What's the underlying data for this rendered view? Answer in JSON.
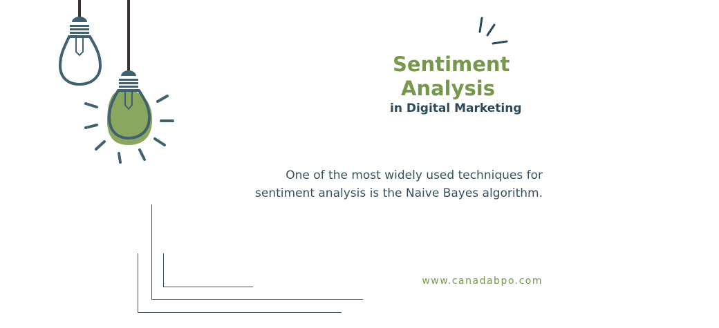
{
  "title": {
    "line1": "Sentiment",
    "line2": "Analysis",
    "line3": "in Digital Marketing"
  },
  "body": "One of the most widely used techniques for sentiment analysis is the Naive Bayes algorithm.",
  "website": "www.canadabpo.com",
  "colors": {
    "green": "#76974c",
    "slate": "#3f6170",
    "cord": "#3d3330"
  },
  "icons": [
    "light-bulb-icon",
    "glowing-light-bulb-icon"
  ]
}
